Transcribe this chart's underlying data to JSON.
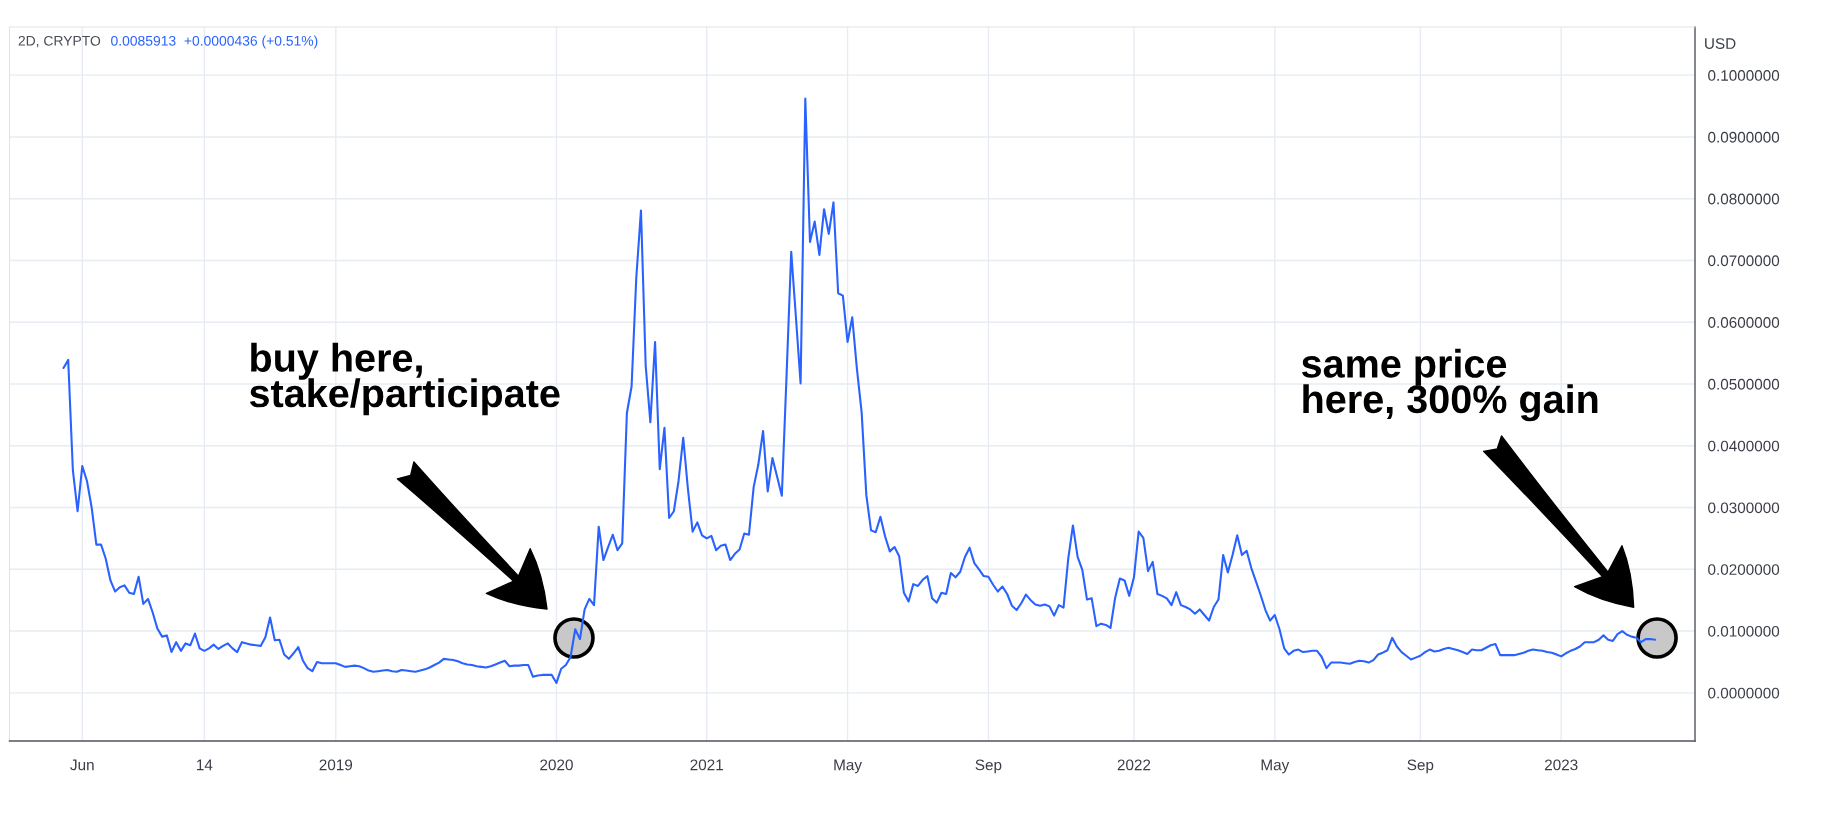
{
  "chart_data": {
    "type": "line",
    "title": "2D, CRYPTO",
    "subtitle": "0.0085913  +0.0000436 (+0.51%)",
    "ylabel": "USD",
    "annotations": [
      "buy here,\nstake/participate",
      "same price\nhere, 300% gain"
    ],
    "categories": [
      null,
      null,
      null,
      null,
      null,
      null,
      null,
      null,
      null,
      null,
      null,
      null,
      null,
      null,
      null,
      "Jun",
      null,
      null,
      null,
      null,
      null,
      null,
      null,
      null,
      null,
      null,
      null,
      null,
      null,
      null,
      null,
      null,
      null,
      null,
      null,
      null,
      null,
      null,
      null,
      null,
      null,
      "14",
      null,
      null,
      null,
      null,
      null,
      null,
      null,
      null,
      null,
      null,
      null,
      null,
      null,
      null,
      null,
      null,
      null,
      null,
      null,
      null,
      null,
      null,
      null,
      null,
      null,
      null,
      null,
      "2019",
      null,
      null,
      null,
      null,
      null,
      null,
      null,
      null,
      null,
      null,
      null,
      null,
      null,
      null,
      null,
      null,
      null,
      null,
      null,
      null,
      null,
      null,
      null,
      null,
      null,
      null,
      null,
      null,
      null,
      null,
      null,
      null,
      null,
      null,
      null,
      null,
      null,
      null,
      null,
      null,
      null,
      null,
      null,
      null,
      null,
      null,
      "2020",
      null,
      null,
      null,
      null,
      null,
      null,
      null,
      null,
      null,
      null,
      null,
      null,
      null,
      null,
      null,
      null,
      null,
      null,
      null,
      null,
      null,
      null,
      null,
      null,
      null,
      null,
      null,
      null,
      null,
      null,
      null,
      "2021",
      null,
      null,
      null,
      null,
      null,
      null,
      null,
      null,
      null,
      null,
      null,
      null,
      null,
      null,
      null,
      null,
      null,
      null,
      null,
      null,
      null,
      null,
      null,
      null,
      null,
      null,
      null,
      null,
      null,
      "May",
      null,
      null,
      null,
      null,
      null,
      null,
      null,
      null,
      null,
      null,
      null,
      null,
      null,
      null,
      null,
      null,
      null,
      null,
      null,
      null,
      null,
      null,
      null,
      null,
      null,
      null,
      null,
      null,
      null,
      "Sep",
      null,
      null,
      null,
      null,
      null,
      null,
      null,
      null,
      null,
      null,
      null,
      null,
      null,
      null,
      null,
      null,
      null,
      null,
      null,
      null,
      null,
      null,
      null,
      null,
      null,
      null,
      null,
      null,
      null,
      null,
      "2022",
      null,
      null,
      null,
      null,
      null,
      null,
      null,
      null,
      null,
      null,
      null,
      null,
      null,
      null,
      null,
      null,
      null,
      null,
      null,
      null,
      null,
      null,
      null,
      null,
      null,
      null,
      null,
      null,
      null,
      "May",
      null,
      null,
      null,
      null,
      null,
      null,
      null,
      null,
      null,
      null,
      null,
      null,
      null,
      null,
      null,
      null,
      null,
      null,
      null,
      null,
      null,
      null,
      null,
      null,
      null,
      null,
      null,
      null,
      null,
      null,
      "Sep",
      null,
      null,
      null,
      null,
      null,
      null,
      null,
      null,
      null,
      null,
      null,
      null,
      null,
      null,
      null,
      null,
      null,
      null,
      null,
      null,
      null,
      null,
      null,
      null,
      null,
      null,
      null,
      null,
      null,
      "2023",
      null,
      null,
      null,
      null,
      null,
      null,
      null,
      null,
      null,
      null,
      null,
      null,
      null,
      null,
      null,
      null,
      null,
      null,
      null,
      null,
      null,
      null,
      null,
      null,
      null,
      null,
      null,
      null
    ],
    "ylim": [
      -0.0078,
      0.1078
    ],
    "yticks": [
      {
        "value": 0.0,
        "label": "0.0000000"
      },
      {
        "value": 0.01,
        "label": "0.0100000"
      },
      {
        "value": 0.02,
        "label": "0.0200000"
      },
      {
        "value": 0.03,
        "label": "0.0300000"
      },
      {
        "value": 0.04,
        "label": "0.0400000"
      },
      {
        "value": 0.05,
        "label": "0.0500000"
      },
      {
        "value": 0.06,
        "label": "0.0600000"
      },
      {
        "value": 0.07,
        "label": "0.0700000"
      },
      {
        "value": 0.08,
        "label": "0.0800000"
      },
      {
        "value": 0.09,
        "label": "0.0900000"
      },
      {
        "value": 0.1,
        "label": "0.1000000"
      }
    ],
    "grid": true,
    "series": [
      {
        "color": "#2962ff",
        "values": [
          null,
          null,
          null,
          null,
          null,
          null,
          null,
          null,
          null,
          null,
          null,
          0.0526,
          0.0539,
          0.036,
          0.0294,
          0.0367,
          0.0343,
          0.03,
          0.024,
          0.024,
          0.0217,
          0.0182,
          0.0164,
          0.0171,
          0.0174,
          0.0162,
          0.016,
          0.0188,
          0.0144,
          0.0152,
          0.013,
          0.0104,
          0.0091,
          0.0093,
          0.0066,
          0.0082,
          0.0068,
          0.008,
          0.0077,
          0.0096,
          0.0072,
          0.0068,
          0.0072,
          0.0078,
          0.0071,
          0.0076,
          0.008,
          0.0072,
          0.0066,
          0.0082,
          0.008,
          0.0078,
          0.0077,
          0.0076,
          0.009,
          0.0122,
          0.0085,
          0.0086,
          0.0062,
          0.0055,
          0.0064,
          0.0074,
          0.0052,
          0.004,
          0.0035,
          0.005,
          0.0048,
          0.0048,
          0.0048,
          0.0048,
          0.0045,
          0.0042,
          0.0043,
          0.0044,
          0.0043,
          0.004,
          0.0036,
          0.0034,
          0.0035,
          0.0036,
          0.0037,
          0.0035,
          0.0034,
          0.0037,
          0.0036,
          0.0035,
          0.0034,
          0.0036,
          0.0038,
          0.0041,
          0.0045,
          0.0049,
          0.0055,
          0.0054,
          0.0053,
          0.0051,
          0.0048,
          0.0046,
          0.0045,
          0.0043,
          0.0042,
          0.0041,
          0.0043,
          0.0046,
          0.0049,
          0.0052,
          0.0043,
          0.0044,
          0.0044,
          0.0045,
          0.0045,
          0.0026,
          0.0028,
          0.0029,
          0.0029,
          0.0029,
          0.0016,
          0.0039,
          0.0045,
          0.0058,
          0.0103,
          0.0087,
          0.0135,
          0.0152,
          0.0142,
          0.0269,
          0.0215,
          0.0236,
          0.0256,
          0.0231,
          0.0242,
          0.0453,
          0.0496,
          0.0672,
          0.0781,
          0.053,
          0.0438,
          0.0568,
          0.0362,
          0.0429,
          0.0283,
          0.0294,
          0.0343,
          0.0413,
          0.033,
          0.0261,
          0.0276,
          0.0255,
          0.025,
          0.0254,
          0.0231,
          0.0238,
          0.024,
          0.0215,
          0.0225,
          0.0232,
          0.0258,
          0.0256,
          0.0333,
          0.037,
          0.0424,
          0.0326,
          0.038,
          0.035,
          0.0319,
          0.0512,
          0.0714,
          0.0608,
          0.0501,
          0.0962,
          0.073,
          0.0763,
          0.0709,
          0.0783,
          0.0743,
          0.0794,
          0.0647,
          0.0643,
          0.0568,
          0.0608,
          0.0524,
          0.0454,
          0.032,
          0.0263,
          0.026,
          0.0285,
          0.0253,
          0.0229,
          0.0236,
          0.0221,
          0.0162,
          0.0148,
          0.0176,
          0.0173,
          0.0183,
          0.0189,
          0.0153,
          0.0146,
          0.0162,
          0.016,
          0.0194,
          0.0187,
          0.0196,
          0.022,
          0.0235,
          0.021,
          0.02,
          0.0189,
          0.0188,
          0.0175,
          0.0164,
          0.0172,
          0.016,
          0.0141,
          0.0134,
          0.0145,
          0.0159,
          0.015,
          0.0143,
          0.0141,
          0.0143,
          0.014,
          0.0125,
          0.0142,
          0.0138,
          0.0217,
          0.0271,
          0.022,
          0.0199,
          0.0151,
          0.0153,
          0.0108,
          0.0112,
          0.011,
          0.0105,
          0.0154,
          0.0185,
          0.0182,
          0.0157,
          0.0187,
          0.0261,
          0.0251,
          0.0197,
          0.0212,
          0.016,
          0.0157,
          0.0153,
          0.0142,
          0.0163,
          0.0142,
          0.0139,
          0.0135,
          0.0128,
          0.0135,
          0.0126,
          0.0117,
          0.0139,
          0.0151,
          0.0223,
          0.0195,
          0.0223,
          0.0255,
          0.0223,
          0.023,
          0.0202,
          0.018,
          0.0158,
          0.0134,
          0.0117,
          0.0126,
          0.0103,
          0.0072,
          0.0062,
          0.0068,
          0.007,
          0.0066,
          0.0067,
          0.0068,
          0.0068,
          0.0058,
          0.004,
          0.0049,
          0.0049,
          0.0049,
          0.0048,
          0.0047,
          0.005,
          0.0052,
          0.0051,
          0.0049,
          0.0053,
          0.0062,
          0.0065,
          0.0069,
          0.0089,
          0.0075,
          0.0066,
          0.006,
          0.0054,
          0.0057,
          0.006,
          0.0066,
          0.007,
          0.0067,
          0.0068,
          0.0071,
          0.0073,
          0.0071,
          0.0069,
          0.0066,
          0.0063,
          0.007,
          0.0069,
          0.0069,
          0.0073,
          0.0077,
          0.0079,
          0.0061,
          0.0061,
          0.0061,
          0.0061,
          0.0063,
          0.0065,
          0.0068,
          0.007,
          0.0069,
          0.0068,
          0.0066,
          0.0065,
          0.0062,
          0.0059,
          0.0064,
          0.0068,
          0.0071,
          0.0075,
          0.0082,
          0.0082,
          0.0082,
          0.0086,
          0.0093,
          0.0086,
          0.0084,
          0.0095,
          0.01,
          0.0094,
          0.0091,
          0.0089,
          0.0082,
          0.0087,
          0.0087,
          0.0086,
          null,
          null,
          null,
          null,
          null,
          null,
          null,
          null
        ]
      }
    ]
  }
}
